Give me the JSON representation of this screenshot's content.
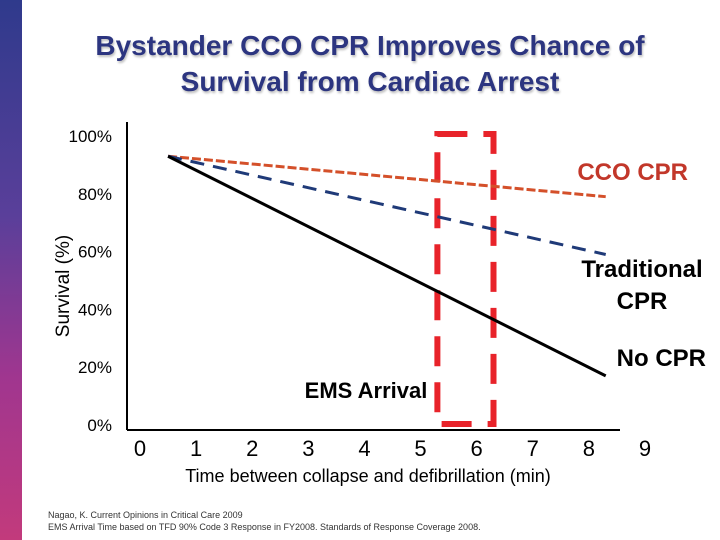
{
  "slide": {
    "title_line1": "Bystander CCO CPR Improves Chance of",
    "title_line2": "Survival from Cardiac Arrest",
    "footnote_line1": "Nagao, K. Current Opinions in Critical Care 2009",
    "footnote_line2": "EMS Arrival Time based on TFD 90% Code 3 Response in FY2008. Standards of Response Coverage 2008.",
    "colors": {
      "accent_bar_top": "#2f3a8c",
      "accent_bar_bottom": "#c23a7c",
      "title": "#2c3580"
    }
  },
  "chart_data": {
    "type": "line",
    "title": "Bystander CCO CPR Improves Chance of Survival from Cardiac Arrest",
    "xlabel": "Time between collapse and defibrillation (min)",
    "ylabel": "Survival (%)",
    "x_ticks": [
      "0",
      "1",
      "2",
      "3",
      "4",
      "5",
      "6",
      "7",
      "8",
      "9"
    ],
    "y_ticks": [
      "0%",
      "20%",
      "40%",
      "60%",
      "80%",
      "100%"
    ],
    "xlim": [
      0,
      9
    ],
    "ylim": [
      0,
      100
    ],
    "grid": false,
    "series": [
      {
        "name": "CCO CPR",
        "style": "dashed",
        "color": "#d4502a",
        "x": [
          0.5,
          8.3
        ],
        "y": [
          93,
          79
        ]
      },
      {
        "name": "Traditional CPR",
        "style": "dashed",
        "color": "#1f3a78",
        "x": [
          0.5,
          8.3
        ],
        "y": [
          93,
          59
        ]
      },
      {
        "name": "No CPR",
        "style": "solid",
        "color": "#000000",
        "x": [
          0.5,
          8.3
        ],
        "y": [
          93,
          17
        ]
      }
    ],
    "annotation": {
      "label": "EMS Arrival",
      "x_start": 5.3,
      "x_end": 6.3,
      "color": "#e8232a"
    }
  }
}
